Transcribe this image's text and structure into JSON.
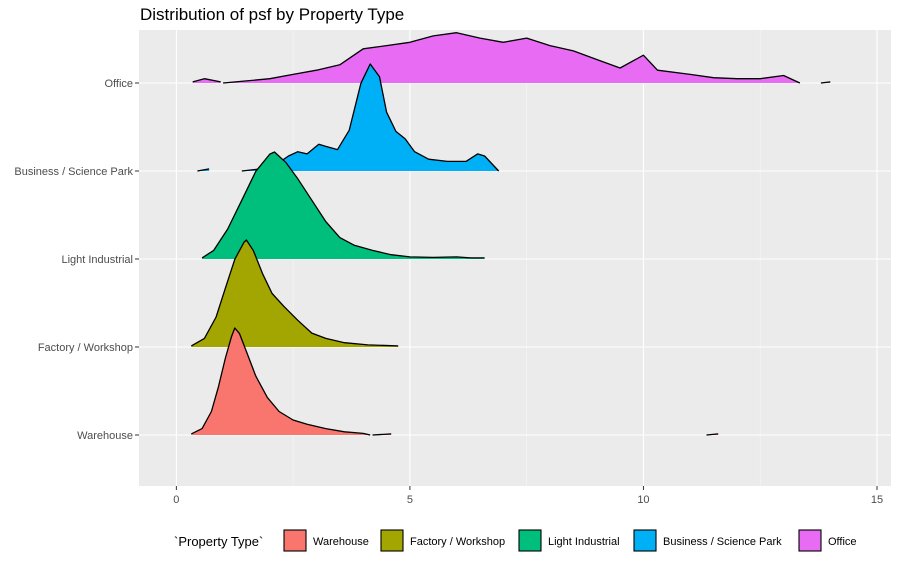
{
  "chart_data": {
    "type": "ridgeline",
    "title": "Distribution of psf by Property Type",
    "xlabel": "",
    "ylabel": "",
    "xlim": [
      -0.8,
      15.3
    ],
    "x_ticks": [
      0,
      5,
      10,
      15
    ],
    "x_tick_labels": [
      "0",
      "5",
      "10",
      "15"
    ],
    "grid": true,
    "legend": {
      "title": "`Property Type`",
      "position": "bottom",
      "entries": [
        {
          "label": "Warehouse",
          "color": "#F8766D"
        },
        {
          "label": "Factory / Workshop",
          "color": "#A3A500"
        },
        {
          "label": "Light Industrial",
          "color": "#00BF7D"
        },
        {
          "label": "Business / Science Park",
          "color": "#00B0F6"
        },
        {
          "label": "Office",
          "color": "#E76BF3"
        }
      ]
    },
    "categories": [
      "Warehouse",
      "Factory / Workshop",
      "Light Industrial",
      "Business / Science Park",
      "Office"
    ],
    "series": [
      {
        "name": "Warehouse",
        "color": "#F8766D",
        "segments": [
          [
            [
              0.32,
              0.01
            ],
            [
              0.55,
              0.06
            ],
            [
              0.75,
              0.22
            ],
            [
              0.9,
              0.45
            ],
            [
              1.05,
              0.72
            ],
            [
              1.18,
              0.92
            ],
            [
              1.25,
              1.0
            ],
            [
              1.35,
              0.95
            ],
            [
              1.5,
              0.78
            ],
            [
              1.7,
              0.55
            ],
            [
              1.95,
              0.35
            ],
            [
              2.2,
              0.22
            ],
            [
              2.5,
              0.14
            ],
            [
              2.8,
              0.1
            ],
            [
              3.2,
              0.06
            ],
            [
              3.6,
              0.03
            ],
            [
              4.0,
              0.015
            ],
            [
              4.15,
              0.0
            ]
          ],
          [
            [
              4.2,
              0.0
            ],
            [
              4.6,
              0.01
            ]
          ],
          [
            [
              11.35,
              0.0
            ],
            [
              11.6,
              0.01
            ]
          ]
        ]
      },
      {
        "name": "Factory / Workshop",
        "color": "#A3A500",
        "segments": [
          [
            [
              0.32,
              0.01
            ],
            [
              0.6,
              0.08
            ],
            [
              0.85,
              0.28
            ],
            [
              1.05,
              0.55
            ],
            [
              1.25,
              0.82
            ],
            [
              1.45,
              0.98
            ],
            [
              1.5,
              1.0
            ],
            [
              1.65,
              0.9
            ],
            [
              1.85,
              0.68
            ],
            [
              2.05,
              0.5
            ],
            [
              2.3,
              0.38
            ],
            [
              2.6,
              0.25
            ],
            [
              2.9,
              0.13
            ],
            [
              3.2,
              0.08
            ],
            [
              3.6,
              0.04
            ],
            [
              4.1,
              0.02
            ],
            [
              4.75,
              0.01
            ]
          ]
        ]
      },
      {
        "name": "Light Industrial",
        "color": "#00BF7D",
        "segments": [
          [
            [
              0.55,
              0.01
            ],
            [
              0.8,
              0.08
            ],
            [
              1.1,
              0.28
            ],
            [
              1.4,
              0.55
            ],
            [
              1.7,
              0.82
            ],
            [
              2.0,
              0.98
            ],
            [
              2.1,
              1.0
            ],
            [
              2.35,
              0.9
            ],
            [
              2.6,
              0.75
            ],
            [
              2.9,
              0.55
            ],
            [
              3.2,
              0.35
            ],
            [
              3.5,
              0.2
            ],
            [
              3.8,
              0.13
            ],
            [
              4.2,
              0.08
            ],
            [
              4.6,
              0.04
            ],
            [
              5.0,
              0.02
            ],
            [
              5.5,
              0.015
            ],
            [
              6.0,
              0.02
            ],
            [
              6.3,
              0.01
            ],
            [
              6.6,
              0.01
            ]
          ]
        ]
      },
      {
        "name": "Business / Science Park",
        "color": "#00B0F6",
        "segments": [
          [
            [
              0.45,
              0.0
            ],
            [
              0.7,
              0.02
            ]
          ],
          [
            [
              1.4,
              0.0
            ],
            [
              1.8,
              0.02
            ],
            [
              2.1,
              0.05
            ],
            [
              2.4,
              0.14
            ],
            [
              2.6,
              0.18
            ],
            [
              2.8,
              0.16
            ],
            [
              3.05,
              0.25
            ],
            [
              3.2,
              0.23
            ],
            [
              3.45,
              0.2
            ],
            [
              3.7,
              0.38
            ],
            [
              3.95,
              0.82
            ],
            [
              4.15,
              1.0
            ],
            [
              4.35,
              0.88
            ],
            [
              4.5,
              0.55
            ],
            [
              4.7,
              0.37
            ],
            [
              4.9,
              0.3
            ],
            [
              5.1,
              0.18
            ],
            [
              5.4,
              0.11
            ],
            [
              5.8,
              0.09
            ],
            [
              6.2,
              0.09
            ],
            [
              6.45,
              0.16
            ],
            [
              6.6,
              0.14
            ],
            [
              6.9,
              0.0
            ]
          ]
        ]
      },
      {
        "name": "Office",
        "color": "#E76BF3",
        "segments": [
          [
            [
              0.35,
              0.01
            ],
            [
              0.6,
              0.04
            ],
            [
              0.95,
              0.01
            ]
          ],
          [
            [
              1.0,
              0.0
            ],
            [
              1.5,
              0.02
            ],
            [
              2.0,
              0.04
            ],
            [
              2.5,
              0.08
            ],
            [
              3.0,
              0.12
            ],
            [
              3.5,
              0.17
            ],
            [
              4.0,
              0.32
            ],
            [
              4.5,
              0.35
            ],
            [
              5.0,
              0.38
            ],
            [
              5.5,
              0.44
            ],
            [
              6.0,
              0.47
            ],
            [
              6.5,
              0.42
            ],
            [
              7.0,
              0.38
            ],
            [
              7.5,
              0.42
            ],
            [
              8.0,
              0.35
            ],
            [
              8.5,
              0.3
            ],
            [
              9.0,
              0.22
            ],
            [
              9.5,
              0.14
            ],
            [
              10.0,
              0.26
            ],
            [
              10.3,
              0.12
            ],
            [
              11.0,
              0.08
            ],
            [
              11.5,
              0.05
            ],
            [
              12.0,
              0.04
            ],
            [
              12.5,
              0.04
            ],
            [
              13.0,
              0.07
            ],
            [
              13.35,
              0.0
            ]
          ],
          [
            [
              13.8,
              0.0
            ],
            [
              14.0,
              0.01
            ]
          ]
        ]
      }
    ]
  }
}
